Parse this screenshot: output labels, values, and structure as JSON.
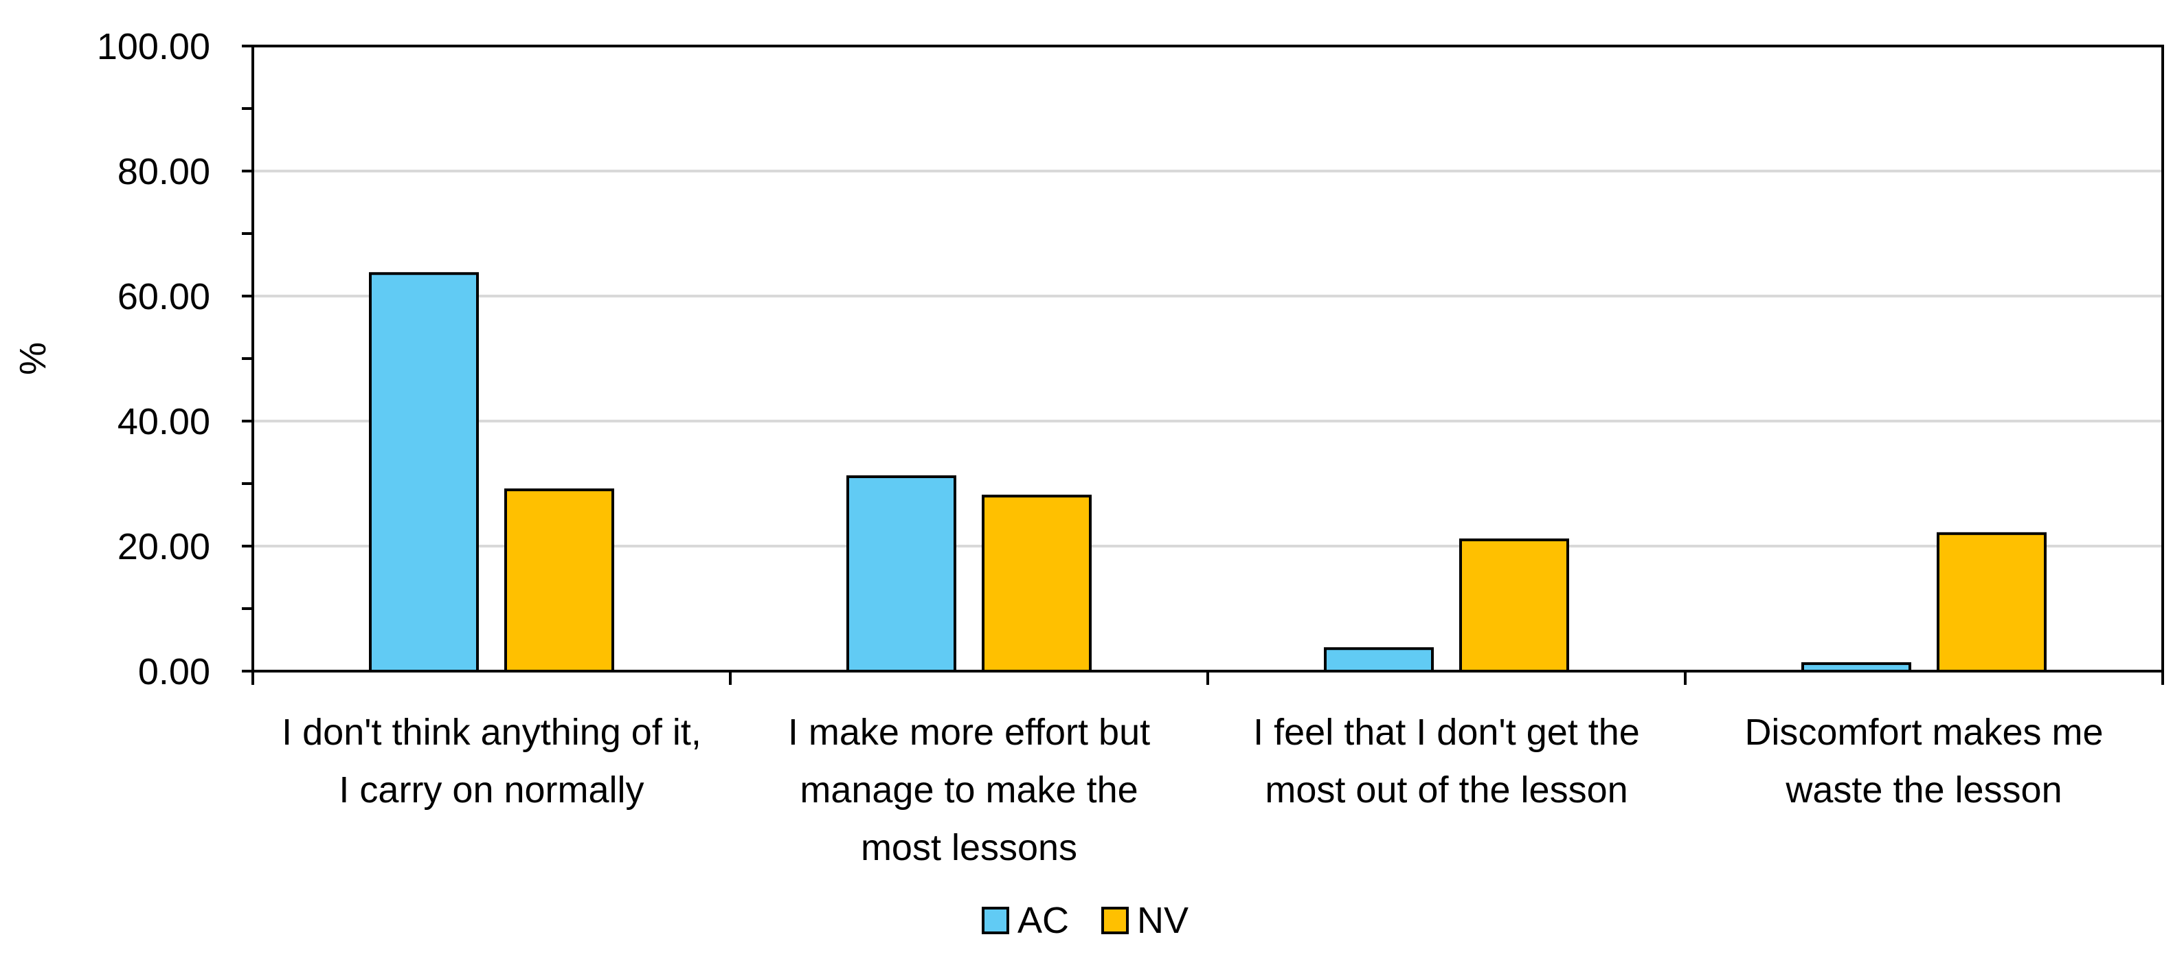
{
  "chart_data": {
    "type": "bar",
    "title": "",
    "xlabel": "",
    "ylabel": "%",
    "ylim": [
      0,
      100
    ],
    "y_ticks": [
      "0.00",
      "20.00",
      "40.00",
      "60.00",
      "80.00",
      "100.00"
    ],
    "y_tick_values": [
      0,
      20,
      40,
      60,
      80,
      100
    ],
    "minor_tick_step": 10,
    "grid": true,
    "legend_position": "bottom-center",
    "categories": [
      [
        "I don't think anything of it,",
        "I carry on normally"
      ],
      [
        "I make more effort but",
        "manage to make the",
        "most lessons"
      ],
      [
        "I feel that I don't get the",
        "most out of the lesson"
      ],
      [
        "Discomfort makes me",
        "waste the lesson"
      ]
    ],
    "series": [
      {
        "name": "AC",
        "color": "#61CBF4",
        "values": [
          63.6,
          31.1,
          3.6,
          1.2
        ]
      },
      {
        "name": "NV",
        "color": "#FFC000",
        "values": [
          29.0,
          28.0,
          21.0,
          22.0
        ]
      }
    ]
  }
}
